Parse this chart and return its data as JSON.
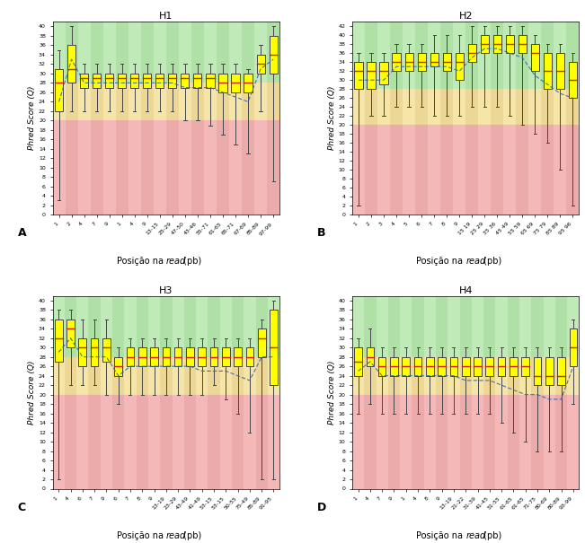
{
  "panels": [
    {
      "title": "H1",
      "label": "A",
      "ylim": [
        0,
        41
      ],
      "yticks": [
        0,
        2,
        4,
        6,
        8,
        10,
        12,
        14,
        16,
        18,
        20,
        22,
        24,
        26,
        28,
        30,
        32,
        34,
        36,
        38,
        40
      ],
      "xtick_labels": [
        "1",
        "2",
        "4",
        "7",
        "9",
        "1",
        "4",
        "9",
        "13-15",
        "25-29",
        "47-50",
        "43-46",
        "55-71",
        "61-65",
        "65-71",
        "67-69",
        "85-89",
        "97-99"
      ],
      "positions": [
        1,
        2,
        3,
        4,
        5,
        6,
        7,
        8,
        9,
        10,
        11,
        12,
        13,
        14,
        15,
        16,
        17,
        18
      ],
      "q1": [
        22,
        28,
        27,
        27,
        27,
        27,
        27,
        27,
        27,
        27,
        27,
        27,
        27,
        26,
        26,
        26,
        30,
        30
      ],
      "median": [
        28,
        31,
        29,
        29,
        29,
        29,
        29,
        29,
        29,
        29,
        29,
        29,
        29,
        28,
        28,
        28,
        32,
        34
      ],
      "q3": [
        31,
        36,
        30,
        30,
        30,
        30,
        30,
        30,
        30,
        30,
        30,
        30,
        30,
        30,
        30,
        30,
        34,
        38
      ],
      "whislo": [
        3,
        22,
        22,
        22,
        22,
        22,
        22,
        22,
        22,
        22,
        20,
        20,
        19,
        17,
        15,
        13,
        22,
        7
      ],
      "whishi": [
        35,
        40,
        32,
        32,
        32,
        32,
        32,
        32,
        32,
        32,
        32,
        32,
        32,
        32,
        32,
        31,
        36,
        40
      ],
      "mean": [
        24,
        33,
        28,
        28,
        28,
        28,
        28,
        28,
        28,
        28,
        27,
        27,
        27,
        26,
        25,
        24,
        31,
        33
      ]
    },
    {
      "title": "H2",
      "label": "B",
      "ylim": [
        0,
        43
      ],
      "yticks": [
        0,
        2,
        4,
        6,
        8,
        10,
        12,
        14,
        16,
        18,
        20,
        22,
        24,
        26,
        28,
        30,
        32,
        34,
        36,
        38,
        40,
        42
      ],
      "xtick_labels": [
        "1",
        "2",
        "3",
        "4",
        "5",
        "6",
        "7",
        "8",
        "9",
        "15 19",
        "25 29",
        "35 36",
        "45 49",
        "55 59",
        "65 69",
        "75 79",
        "85 89",
        "95 96"
      ],
      "positions": [
        1,
        2,
        3,
        4,
        5,
        6,
        7,
        8,
        9,
        10,
        11,
        12,
        13,
        14,
        15,
        16,
        17,
        18
      ],
      "q1": [
        28,
        28,
        29,
        32,
        32,
        32,
        33,
        32,
        30,
        34,
        36,
        36,
        36,
        36,
        32,
        28,
        28,
        26
      ],
      "median": [
        32,
        32,
        32,
        34,
        34,
        34,
        34,
        34,
        34,
        36,
        38,
        38,
        38,
        38,
        36,
        32,
        32,
        30
      ],
      "q3": [
        34,
        34,
        34,
        36,
        36,
        36,
        36,
        36,
        36,
        38,
        40,
        40,
        40,
        40,
        38,
        36,
        36,
        34
      ],
      "whislo": [
        2,
        22,
        22,
        24,
        24,
        24,
        22,
        22,
        22,
        24,
        24,
        24,
        22,
        20,
        18,
        16,
        10,
        2
      ],
      "whishi": [
        36,
        36,
        36,
        38,
        38,
        38,
        40,
        40,
        40,
        42,
        42,
        42,
        42,
        42,
        40,
        38,
        38,
        36
      ],
      "mean": [
        30,
        30,
        30,
        33,
        33,
        33,
        33,
        33,
        32,
        35,
        37,
        37,
        36,
        35,
        31,
        29,
        27,
        26
      ]
    },
    {
      "title": "H3",
      "label": "C",
      "ylim": [
        0,
        41
      ],
      "yticks": [
        0,
        2,
        4,
        6,
        8,
        10,
        12,
        14,
        16,
        18,
        20,
        22,
        24,
        26,
        28,
        30,
        32,
        34,
        36,
        38,
        40
      ],
      "xtick_labels": [
        "1",
        "4",
        "6",
        "7",
        "9",
        "6",
        "7",
        "8",
        "9",
        "13-19",
        "23-29",
        "43-49",
        "41-49",
        "53-15",
        "53-15",
        "50-55",
        "75-49",
        "85-89",
        "91-95"
      ],
      "positions": [
        1,
        2,
        3,
        4,
        5,
        6,
        7,
        8,
        9,
        10,
        11,
        12,
        13,
        14,
        15,
        16,
        17,
        18,
        19
      ],
      "q1": [
        27,
        30,
        26,
        26,
        27,
        24,
        26,
        26,
        26,
        26,
        26,
        26,
        26,
        26,
        26,
        26,
        26,
        28,
        22
      ],
      "median": [
        32,
        34,
        30,
        30,
        30,
        26,
        28,
        28,
        28,
        28,
        28,
        28,
        28,
        28,
        28,
        28,
        28,
        32,
        30
      ],
      "q3": [
        36,
        36,
        32,
        32,
        32,
        28,
        30,
        30,
        30,
        30,
        30,
        30,
        30,
        30,
        30,
        30,
        30,
        34,
        38
      ],
      "whislo": [
        2,
        22,
        22,
        22,
        20,
        18,
        20,
        20,
        20,
        20,
        20,
        20,
        20,
        22,
        19,
        16,
        12,
        2,
        2
      ],
      "whishi": [
        38,
        38,
        36,
        36,
        36,
        30,
        32,
        32,
        32,
        32,
        32,
        32,
        32,
        32,
        32,
        32,
        32,
        36,
        40
      ],
      "mean": [
        29,
        32,
        28,
        28,
        28,
        24,
        26,
        26,
        26,
        26,
        26,
        26,
        25,
        25,
        25,
        24,
        23,
        28,
        28
      ]
    },
    {
      "title": "H4",
      "label": "D",
      "ylim": [
        0,
        41
      ],
      "yticks": [
        0,
        2,
        4,
        6,
        8,
        10,
        12,
        14,
        16,
        18,
        20,
        22,
        24,
        26,
        28,
        30,
        32,
        34,
        36,
        38,
        40
      ],
      "xtick_labels": [
        "1",
        "4",
        "7",
        "9",
        "1",
        "4",
        "8",
        "9",
        "13-19",
        "21-22",
        "31-39",
        "41-45",
        "51-55",
        "61-65",
        "61-65",
        "71-75",
        "80-69",
        "80-89",
        "93-99"
      ],
      "positions": [
        1,
        2,
        3,
        4,
        5,
        6,
        7,
        8,
        9,
        10,
        11,
        12,
        13,
        14,
        15,
        16,
        17,
        18,
        19
      ],
      "q1": [
        24,
        26,
        24,
        24,
        24,
        24,
        24,
        24,
        24,
        24,
        24,
        24,
        24,
        24,
        24,
        22,
        22,
        22,
        26
      ],
      "median": [
        27,
        28,
        26,
        26,
        26,
        26,
        26,
        26,
        26,
        26,
        26,
        26,
        26,
        26,
        26,
        24,
        24,
        24,
        30
      ],
      "q3": [
        30,
        30,
        28,
        28,
        28,
        28,
        28,
        28,
        28,
        28,
        28,
        28,
        28,
        28,
        28,
        28,
        28,
        28,
        34
      ],
      "whislo": [
        16,
        18,
        16,
        16,
        16,
        16,
        16,
        16,
        16,
        16,
        16,
        16,
        14,
        12,
        10,
        8,
        8,
        8,
        18
      ],
      "whishi": [
        32,
        34,
        30,
        30,
        30,
        30,
        30,
        30,
        30,
        30,
        30,
        30,
        30,
        30,
        30,
        30,
        30,
        30,
        36
      ],
      "mean": [
        25,
        27,
        24,
        24,
        24,
        24,
        24,
        24,
        24,
        23,
        23,
        23,
        22,
        21,
        20,
        20,
        19,
        19,
        26
      ]
    }
  ],
  "good_threshold": 28,
  "warn_threshold": 20,
  "good_color": "#b8e6b0",
  "warn_color": "#f5e0a0",
  "bad_color": "#f0b0b0",
  "stripe_light_green": "#c8eec0",
  "stripe_dark_green": "#a8dea0",
  "stripe_light_yellow": "#f8eab0",
  "stripe_dark_yellow": "#e8d090",
  "stripe_light_red": "#f8c0c0",
  "stripe_dark_red": "#e8a8a8",
  "box_color": "#ffff00",
  "box_edge_color": "#444444",
  "median_color": "#cc2200",
  "whisker_color": "#444444",
  "mean_line_color": "#3366aa",
  "title_fontsize": 8,
  "tick_fontsize": 4.5,
  "xlabel_fontsize": 7,
  "ylabel_fontsize": 6.5,
  "panel_label_fontsize": 9,
  "panel_labels": [
    "A",
    "B",
    "C",
    "D"
  ]
}
